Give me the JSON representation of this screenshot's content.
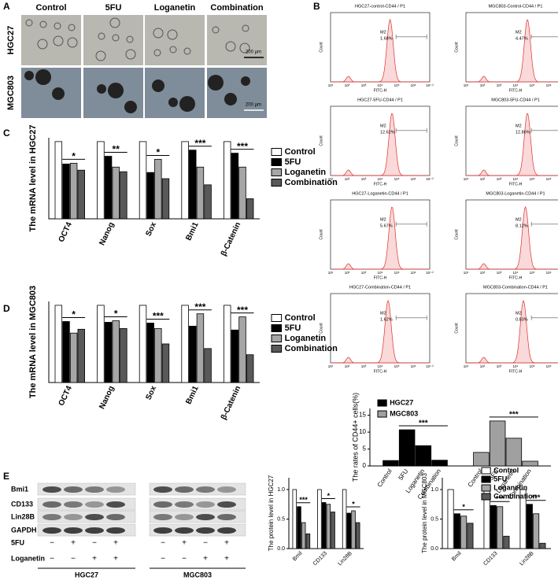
{
  "panel_labels": [
    "A",
    "B",
    "C",
    "D",
    "E"
  ],
  "panel_a": {
    "columns": [
      "Control",
      "5FU",
      "Loganetin",
      "Combination"
    ],
    "rows": [
      "HGC27",
      "MGC803"
    ],
    "scale_bar": "200 μm"
  },
  "flow": {
    "x_label": "FITC-H",
    "y_label": "Count",
    "gate": "M2",
    "x_ticks": [
      "10¹",
      "10²",
      "10³",
      "10⁴",
      "10⁵",
      "10⁶",
      "10⁷·²"
    ],
    "plots": [
      {
        "title": "HGC27-control-CD44 / P1",
        "percent": "1.68%"
      },
      {
        "title": "MGC803-Control-CD44 / P1",
        "percent": "4.47%"
      },
      {
        "title": "HGC27-5FU-CD44 / P1",
        "percent": "12.62%"
      },
      {
        "title": "MGC803-5FU-CD44 / P1",
        "percent": "12.86%"
      },
      {
        "title": "HGC27-Loganetin-CD44 / P1",
        "percent": "5.67%"
      },
      {
        "title": "MGC803-Loganetin-CD44 / P1",
        "percent": "8.12%"
      },
      {
        "title": "HGC27-Combination-CD44 / P1",
        "percent": "1.62%"
      },
      {
        "title": "MGC803-Combination-CD44 / P1",
        "percent": "0.83%"
      }
    ]
  },
  "blot": {
    "proteins": [
      "Bmi1",
      "CD133",
      "Lin28B",
      "GAPDH"
    ],
    "treatments": [
      {
        "label": "5FU",
        "signs": [
          "−",
          "+",
          "−",
          "+"
        ]
      },
      {
        "label": "Loganetin",
        "signs": [
          "−",
          "−",
          "+",
          "+"
        ]
      }
    ],
    "groups": [
      "HGC27",
      "MGC803"
    ]
  },
  "chart_data": [
    {
      "type": "bar",
      "ylabel": "The mRNA level in HGC27",
      "categories": [
        "OCT4",
        "Nanog",
        "Sox",
        "Bmi1",
        "β-Catenin"
      ],
      "ylim": [
        0,
        1.05
      ],
      "series": [
        {
          "name": "Control",
          "color": "#ffffff",
          "values": [
            1,
            1,
            1,
            1,
            1
          ]
        },
        {
          "name": "5FU",
          "color": "#000000",
          "values": [
            0.71,
            0.81,
            0.6,
            0.89,
            0.85
          ]
        },
        {
          "name": "Loganetin",
          "color": "#a6a6a6",
          "values": [
            0.72,
            0.67,
            0.77,
            0.67,
            0.67
          ]
        },
        {
          "name": "Combination",
          "color": "#595959",
          "values": [
            0.63,
            0.61,
            0.52,
            0.44,
            0.26
          ]
        }
      ],
      "annotations": [
        "*",
        "**",
        "*",
        "***",
        "***"
      ]
    },
    {
      "type": "bar",
      "ylabel": "The mRNA level in MGC803",
      "categories": [
        "OCT4",
        "Nanog",
        "Sox",
        "Bmi1",
        "β-Catenin"
      ],
      "ylim": [
        0,
        1.05
      ],
      "series": [
        {
          "name": "Control",
          "color": "#ffffff",
          "values": [
            1,
            1,
            1,
            1,
            1
          ]
        },
        {
          "name": "5FU",
          "color": "#000000",
          "values": [
            0.79,
            0.78,
            0.77,
            0.73,
            0.68
          ]
        },
        {
          "name": "Loganetin",
          "color": "#a6a6a6",
          "values": [
            0.64,
            0.8,
            0.7,
            0.89,
            0.85
          ]
        },
        {
          "name": "Combination",
          "color": "#595959",
          "values": [
            0.69,
            0.7,
            0.5,
            0.44,
            0.36
          ]
        }
      ],
      "annotations": [
        "*",
        "*",
        "***",
        "***",
        "***"
      ]
    },
    {
      "type": "bar",
      "ylabel": "The rates of CD44+ cells(%)",
      "categories": [
        "Control",
        "5FU",
        "Loganetin",
        "Combination"
      ],
      "ylim": [
        0,
        17
      ],
      "yticks": [
        0,
        5,
        10,
        15
      ],
      "series": [
        {
          "name": "HGC27",
          "color": "#000000",
          "values": [
            1.6,
            10.7,
            6.0,
            1.7
          ]
        },
        {
          "name": "MGC803",
          "color": "#a0a0a0",
          "values": [
            4.0,
            13.3,
            8.2,
            1.4
          ]
        }
      ],
      "annotations": [
        "***",
        "***"
      ]
    },
    {
      "type": "bar",
      "ylabel": "The protein level in HGC27",
      "categories": [
        "Bmil",
        "CD133",
        "Lin28B"
      ],
      "ylim": [
        0,
        1.2
      ],
      "yticks": [
        {
          "value": 0,
          "label": "0.0"
        },
        {
          "value": 0.5,
          "label": "0.5"
        },
        {
          "value": 1,
          "label": "1.0"
        }
      ],
      "series": [
        {
          "color": "#ffffff",
          "values": [
            1,
            1,
            1
          ]
        },
        {
          "color": "#000000",
          "values": [
            0.71,
            0.78,
            0.6
          ]
        },
        {
          "color": "#a6a6a6",
          "values": [
            0.44,
            0.75,
            0.64
          ]
        },
        {
          "color": "#595959",
          "values": [
            0.25,
            0.62,
            0.44
          ]
        }
      ],
      "annotations": [
        "***",
        "*",
        "*"
      ]
    },
    {
      "type": "bar",
      "ylabel": "The protein level in MGC803",
      "categories": [
        "Bmil",
        "CD133",
        "Lin28B"
      ],
      "ylim": [
        0,
        1.2
      ],
      "yticks": [
        {
          "value": 0,
          "label": "0.0"
        },
        {
          "value": 0.5,
          "label": "0.5"
        },
        {
          "value": 1,
          "label": "1.0"
        }
      ],
      "series": [
        {
          "name": "Control",
          "color": "#ffffff",
          "values": [
            1,
            1,
            1
          ]
        },
        {
          "name": "5FU",
          "color": "#000000",
          "values": [
            0.59,
            0.73,
            0.75
          ]
        },
        {
          "name": "Loganetin",
          "color": "#a6a6a6",
          "values": [
            0.55,
            0.71,
            0.59
          ]
        },
        {
          "name": "Combination",
          "color": "#595959",
          "values": [
            0.43,
            0.21,
            0.09
          ]
        }
      ],
      "annotations": [
        "*",
        "***",
        "***"
      ]
    }
  ]
}
